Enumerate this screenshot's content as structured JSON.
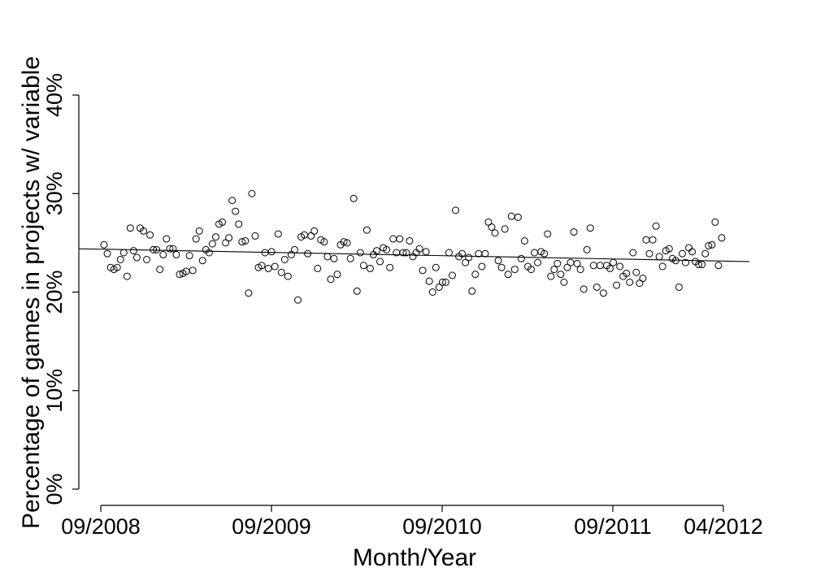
{
  "chart_data": {
    "type": "scatter",
    "title": "",
    "xlabel": "Month/Year",
    "ylabel": "Percentage of games in projects w/ variable",
    "x_ticks": [
      "09/2008",
      "09/2009",
      "09/2010",
      "09/2011",
      "04/2012"
    ],
    "y_ticks": [
      "0%",
      "10%",
      "20%",
      "30%",
      "40%"
    ],
    "ylim": [
      0,
      40
    ],
    "xlim": [
      "09/2008",
      "04/2012"
    ],
    "x_unit": "weeks",
    "grid": false,
    "legend": "none",
    "trend_line": {
      "start": 24.4,
      "end": 23.1
    },
    "series": [
      {
        "values": [
          24.8,
          23.9,
          22.5,
          22.3,
          22.5,
          23.3,
          24.0,
          21.6,
          26.5,
          24.2,
          23.5,
          26.5,
          26.2,
          23.3,
          25.8,
          24.3,
          24.3,
          22.3,
          23.8,
          25.4,
          24.4,
          24.4,
          23.8,
          21.8,
          21.9,
          22.1,
          23.7,
          22.2,
          25.4,
          26.2,
          23.2,
          24.3,
          24.0,
          24.9,
          25.6,
          26.9,
          27.1,
          25.0,
          25.5,
          29.3,
          28.2,
          26.9,
          25.1,
          25.2,
          19.9,
          30.0,
          25.7,
          22.5,
          22.7,
          24.0,
          22.4,
          24.1,
          22.6,
          25.9,
          22.0,
          23.3,
          21.6,
          23.8,
          24.3,
          19.2,
          25.6,
          25.8,
          23.9,
          25.7,
          26.2,
          22.4,
          25.3,
          25.1,
          23.6,
          21.3,
          23.4,
          21.8,
          24.8,
          25.1,
          25.0,
          23.4,
          29.5,
          20.1,
          24.0,
          22.7,
          26.3,
          22.4,
          23.8,
          24.2,
          23.1,
          24.5,
          24.3,
          22.5,
          25.4,
          24.0,
          25.4,
          24.0,
          24.0,
          25.2,
          23.6,
          24.0,
          24.4,
          22.2,
          24.1,
          21.1,
          20.0,
          22.5,
          20.5,
          21.0,
          21.0,
          24.0,
          21.7,
          28.3,
          23.6,
          23.9,
          23.0,
          23.5,
          20.1,
          21.8,
          23.9,
          22.6,
          23.9,
          27.1,
          26.6,
          26.0,
          23.2,
          22.5,
          26.4,
          21.8,
          27.7,
          22.3,
          27.6,
          23.4,
          25.2,
          22.6,
          22.3,
          24.0,
          23.0,
          24.1,
          23.9,
          25.9,
          21.6,
          22.3,
          22.9,
          21.8,
          21.0,
          22.5,
          23.0,
          26.1,
          22.9,
          22.3,
          20.3,
          24.3,
          26.5,
          22.7,
          20.5,
          22.7,
          19.9,
          22.7,
          22.4,
          23.0,
          20.7,
          22.6,
          21.6,
          21.9,
          21.0,
          24.0,
          22.0,
          20.9,
          21.4,
          25.3,
          23.9,
          25.3,
          26.7,
          23.6,
          22.6,
          24.2,
          24.4,
          23.4,
          23.2,
          20.5,
          23.9,
          23.0,
          24.5,
          24.1,
          23.1,
          22.8,
          22.8,
          23.9,
          24.7,
          24.8,
          27.1,
          22.7,
          25.5
        ]
      }
    ]
  }
}
